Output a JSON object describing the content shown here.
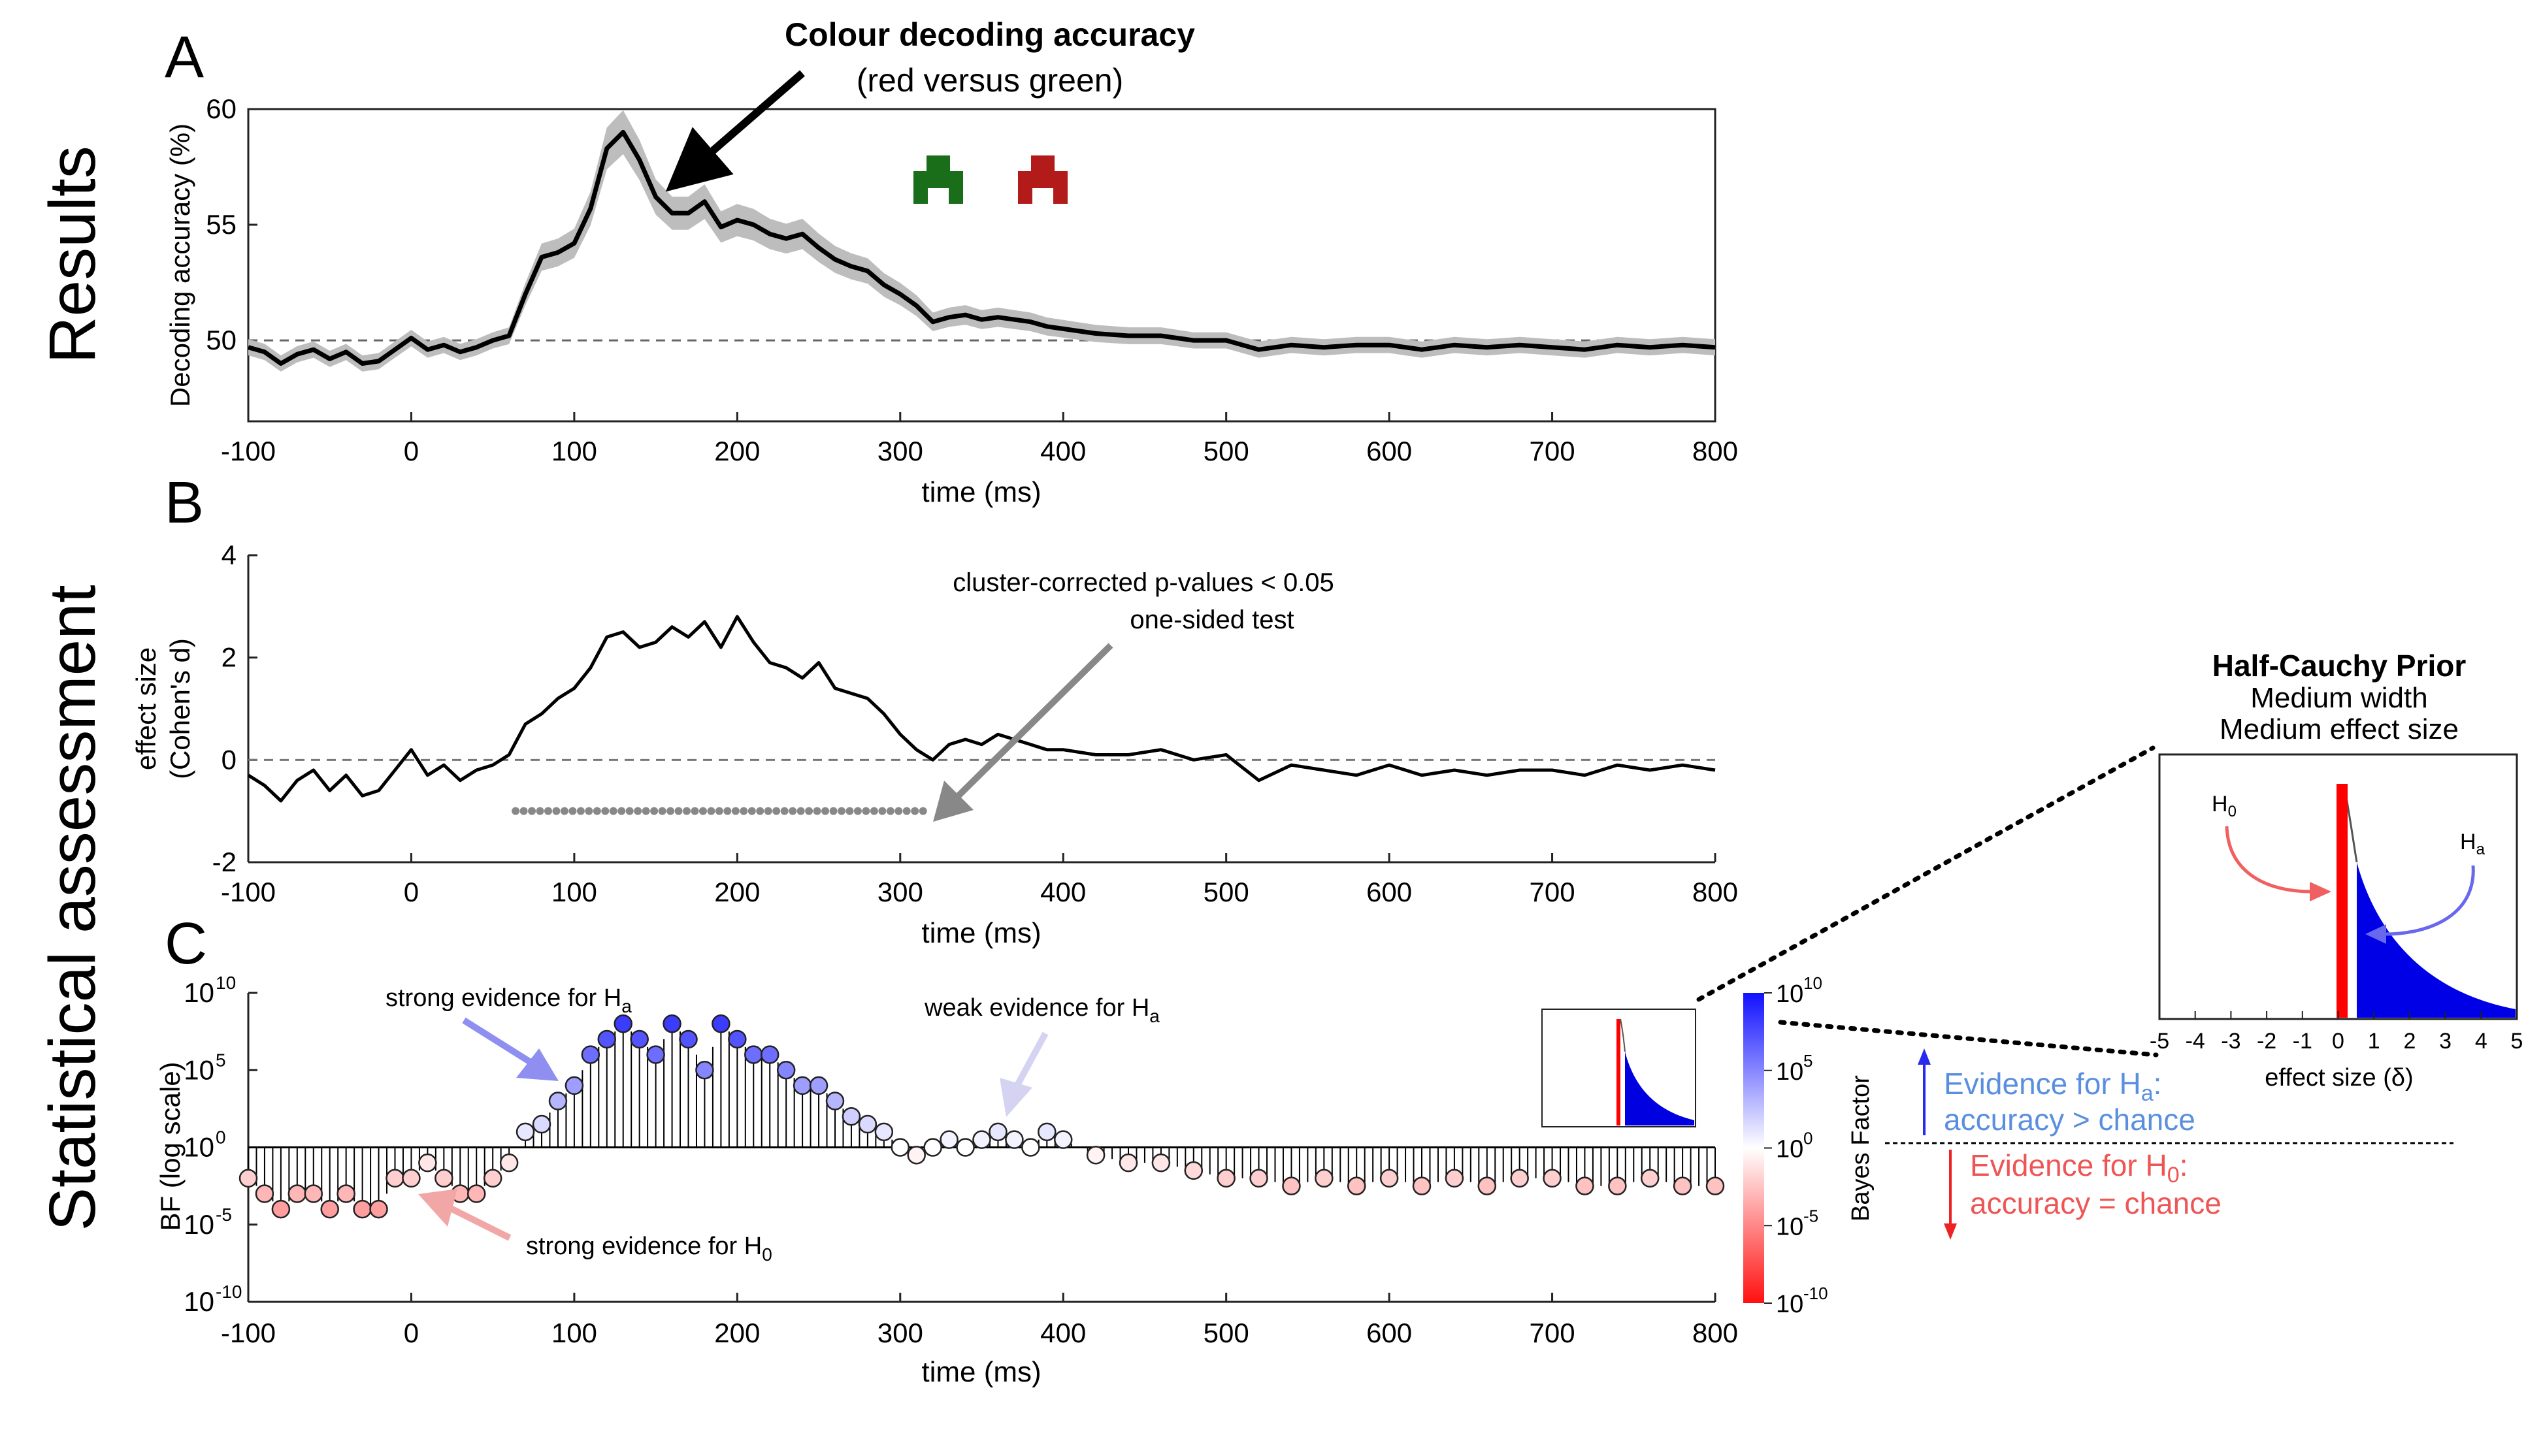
{
  "panel_labels": {
    "a": "A",
    "b": "B",
    "c": "C"
  },
  "row_labels": {
    "results": "Results",
    "stats": "Statistical assessment"
  },
  "time_axis": {
    "label": "time (ms)",
    "ticks": [
      "-100",
      "0",
      "100",
      "200",
      "300",
      "400",
      "500",
      "600",
      "700",
      "800"
    ]
  },
  "panel_a": {
    "title": "Colour decoding accuracy",
    "subtitle": "(red versus green)",
    "ylabel": "Decoding accuracy (%)",
    "yticks": [
      "50",
      "55",
      "60"
    ],
    "stimulus_colors": {
      "green": "#1a6e1a",
      "red": "#b31b1b"
    }
  },
  "panel_b": {
    "ylabel_line1": "effect size",
    "ylabel_line2": "(Cohen's d)",
    "yticks": [
      "-2",
      "0",
      "2",
      "4"
    ],
    "annotation_line1": "cluster-corrected p-values < 0.05",
    "annotation_line2": "one-sided test"
  },
  "panel_c": {
    "ylabel": "BF (log scale)",
    "ann_strong_ha": "strong evidence for H",
    "ann_weak_ha": "weak evidence for H",
    "ann_strong_h0": "strong evidence for H",
    "sub_a": "a",
    "sub_0": "0",
    "colorbar_label": "Bayes Factor",
    "colors": {
      "ha": "#3b3bff",
      "h0": "#ff3b3b",
      "neutral": "#ffffff"
    }
  },
  "prior": {
    "title": "Half-Cauchy Prior",
    "line2": "Medium width",
    "line3": "Medium effect size",
    "xlabel": "effect size (δ)",
    "xticks": [
      "-5",
      "-4",
      "-3",
      "-2",
      "-1",
      "0",
      "1",
      "2",
      "3",
      "4",
      "5"
    ],
    "h0": "H",
    "ha": "H",
    "sub_0": "0",
    "sub_a": "a"
  },
  "legend": {
    "ha_line1": "Evidence for H",
    "ha_sub": "a",
    "ha_line1_end": ":",
    "ha_line2": "accuracy > chance",
    "h0_line1": "Evidence for H",
    "h0_sub": "0",
    "h0_line1_end": ":",
    "h0_line2": "accuracy = chance",
    "ha_color": "#5a8fe0",
    "h0_color": "#ee5555"
  },
  "chart_data": [
    {
      "type": "line",
      "id": "A",
      "xlabel": "time (ms)",
      "ylabel": "Decoding accuracy (%)",
      "xlim": [
        -100,
        800
      ],
      "ylim": [
        46.5,
        60
      ],
      "chance": 50,
      "x": [
        -100,
        -90,
        -80,
        -70,
        -60,
        -50,
        -40,
        -30,
        -20,
        -10,
        0,
        10,
        20,
        30,
        40,
        50,
        60,
        70,
        80,
        90,
        100,
        110,
        120,
        130,
        140,
        150,
        160,
        170,
        180,
        190,
        200,
        210,
        220,
        230,
        240,
        250,
        260,
        270,
        280,
        290,
        300,
        310,
        320,
        330,
        340,
        350,
        360,
        370,
        380,
        390,
        400,
        420,
        440,
        460,
        480,
        500,
        520,
        540,
        560,
        580,
        600,
        620,
        640,
        660,
        680,
        700,
        720,
        740,
        760,
        780,
        800
      ],
      "y": [
        49.7,
        49.5,
        49.0,
        49.4,
        49.6,
        49.2,
        49.5,
        49.0,
        49.1,
        49.6,
        50.1,
        49.6,
        49.8,
        49.5,
        49.7,
        50.0,
        50.2,
        52.0,
        53.6,
        53.8,
        54.2,
        55.7,
        58.3,
        59.0,
        57.8,
        56.2,
        55.5,
        55.5,
        56.0,
        54.9,
        55.2,
        55.0,
        54.6,
        54.4,
        54.6,
        54.0,
        53.5,
        53.2,
        53.0,
        52.4,
        52.0,
        51.5,
        50.8,
        51.0,
        51.1,
        50.9,
        51.0,
        50.9,
        50.8,
        50.6,
        50.5,
        50.3,
        50.2,
        50.2,
        50.0,
        50.0,
        49.6,
        49.8,
        49.7,
        49.8,
        49.8,
        49.6,
        49.8,
        49.7,
        49.8,
        49.7,
        49.6,
        49.8,
        49.7,
        49.8,
        49.7
      ]
    },
    {
      "type": "line",
      "id": "B",
      "xlabel": "time (ms)",
      "ylabel": "effect size (Cohen's d)",
      "xlim": [
        -100,
        800
      ],
      "ylim": [
        -2,
        4
      ],
      "x": [
        -100,
        -90,
        -80,
        -70,
        -60,
        -50,
        -40,
        -30,
        -20,
        -10,
        0,
        10,
        20,
        30,
        40,
        50,
        60,
        70,
        80,
        90,
        100,
        110,
        120,
        130,
        140,
        150,
        160,
        170,
        180,
        190,
        200,
        210,
        220,
        230,
        240,
        250,
        260,
        270,
        280,
        290,
        300,
        310,
        320,
        330,
        340,
        350,
        360,
        370,
        380,
        390,
        400,
        420,
        440,
        460,
        480,
        500,
        520,
        540,
        560,
        580,
        600,
        620,
        640,
        660,
        680,
        700,
        720,
        740,
        760,
        780,
        800
      ],
      "y": [
        -0.3,
        -0.5,
        -0.8,
        -0.4,
        -0.2,
        -0.6,
        -0.3,
        -0.7,
        -0.6,
        -0.2,
        0.2,
        -0.3,
        -0.1,
        -0.4,
        -0.2,
        -0.1,
        0.1,
        0.7,
        0.9,
        1.2,
        1.4,
        1.8,
        2.4,
        2.5,
        2.2,
        2.3,
        2.6,
        2.4,
        2.7,
        2.2,
        2.8,
        2.3,
        1.9,
        1.8,
        1.6,
        1.9,
        1.4,
        1.3,
        1.2,
        0.9,
        0.5,
        0.2,
        0.0,
        0.3,
        0.4,
        0.3,
        0.5,
        0.4,
        0.3,
        0.2,
        0.2,
        0.1,
        0.1,
        0.2,
        0.0,
        0.1,
        -0.4,
        -0.1,
        -0.2,
        -0.3,
        -0.1,
        -0.3,
        -0.2,
        -0.3,
        -0.2,
        -0.2,
        -0.3,
        -0.1,
        -0.2,
        -0.1,
        -0.2
      ],
      "significance": {
        "start": 64,
        "end": 318,
        "step": 5,
        "y": -1
      }
    },
    {
      "type": "stem",
      "id": "C",
      "xlabel": "time (ms)",
      "ylabel": "BF (log scale)",
      "xlim": [
        -100,
        800
      ],
      "ylim_log10": [
        -10,
        10
      ],
      "baseline_log10": 0,
      "x": [
        -100,
        -90,
        -80,
        -70,
        -60,
        -50,
        -40,
        -30,
        -20,
        -10,
        0,
        10,
        20,
        30,
        40,
        50,
        60,
        70,
        80,
        90,
        100,
        110,
        120,
        130,
        140,
        150,
        160,
        170,
        180,
        190,
        200,
        210,
        220,
        230,
        240,
        250,
        260,
        270,
        280,
        290,
        300,
        310,
        320,
        330,
        340,
        350,
        360,
        370,
        380,
        390,
        400,
        420,
        440,
        460,
        480,
        500,
        520,
        540,
        560,
        580,
        600,
        620,
        640,
        660,
        680,
        700,
        720,
        740,
        760,
        780,
        800
      ],
      "log10_bf": [
        -2,
        -3,
        -4,
        -3,
        -3,
        -4,
        -3,
        -4,
        -4,
        -2,
        -2,
        -1,
        -2,
        -3,
        -3,
        -2,
        -1,
        1,
        1.5,
        3,
        4,
        6,
        7,
        8,
        7,
        6,
        8,
        7,
        5,
        8,
        7,
        6,
        6,
        5,
        4,
        4,
        3,
        2,
        1.5,
        1,
        0,
        -0.5,
        0,
        0.5,
        0,
        0.5,
        1,
        0.5,
        0,
        1,
        0.5,
        -0.5,
        -1,
        -1,
        -1.5,
        -2,
        -2,
        -2.5,
        -2,
        -2.5,
        -2,
        -2.5,
        -2,
        -2.5,
        -2,
        -2,
        -2.5,
        -2.5,
        -2,
        -2.5,
        -2.5
      ]
    },
    {
      "type": "area",
      "id": "prior",
      "xlabel": "effect size (δ)",
      "xlim": [
        -5,
        5
      ],
      "null_interval": [
        -0.5,
        0.5
      ],
      "prior": "half-cauchy",
      "prior_width": "medium"
    }
  ]
}
